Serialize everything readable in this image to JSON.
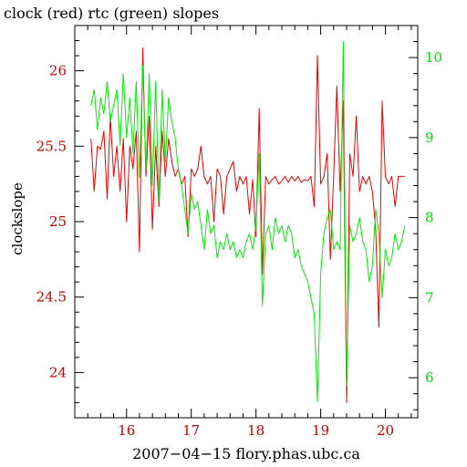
{
  "chart_data": {
    "type": "line",
    "title": "clock (red) rtc (green) slopes",
    "xlabel": "2007−04−15 flory.phas.ubc.ca",
    "ylabel": "clockslope",
    "xlim": [
      15.2,
      20.5
    ],
    "ylim_left": [
      23.7,
      26.3
    ],
    "ylim_right": [
      5.5,
      10.4
    ],
    "x_ticks": [
      16,
      17,
      18,
      19,
      20
    ],
    "y_left_ticks": [
      24,
      24.5,
      25,
      25.5,
      26
    ],
    "y_right_ticks": [
      6,
      7,
      8,
      9,
      10
    ],
    "grid": false,
    "colors": {
      "clock": "#ee0000",
      "rtc": "#00ee00",
      "axis": "#000000",
      "left_ticks": "#cc0000",
      "right_ticks": "#00dd00"
    },
    "series": [
      {
        "axis": "left",
        "color": "#ee0000",
        "x": [
          15.45,
          15.5,
          15.55,
          15.6,
          15.65,
          15.7,
          15.75,
          15.8,
          15.85,
          15.9,
          15.95,
          16.0,
          16.05,
          16.1,
          16.15,
          16.2,
          16.25,
          16.3,
          16.35,
          16.4,
          16.45,
          16.5,
          16.55,
          16.6,
          16.65,
          16.7,
          16.75,
          16.8,
          16.85,
          16.9,
          16.95,
          17.0,
          17.05,
          17.1,
          17.15,
          17.2,
          17.25,
          17.3,
          17.35,
          17.4,
          17.45,
          17.5,
          17.55,
          17.6,
          17.65,
          17.7,
          17.75,
          17.8,
          17.85,
          17.9,
          17.95,
          18.0,
          18.05,
          18.1,
          18.15,
          18.2,
          18.25,
          18.3,
          18.35,
          18.4,
          18.45,
          18.5,
          18.55,
          18.6,
          18.65,
          18.7,
          18.75,
          18.8,
          18.85,
          18.9,
          18.95,
          19.0,
          19.05,
          19.1,
          19.15,
          19.2,
          19.25,
          19.3,
          19.35,
          19.4,
          19.45,
          19.5,
          19.55,
          19.6,
          19.65,
          19.7,
          19.75,
          19.8,
          19.85,
          19.9,
          19.95,
          20.0,
          20.05,
          20.1,
          20.15,
          20.2,
          20.25,
          20.3
        ],
        "y": [
          25.55,
          25.2,
          25.5,
          25.48,
          25.6,
          25.15,
          25.7,
          25.3,
          25.5,
          25.2,
          25.55,
          25.0,
          25.5,
          25.35,
          25.6,
          24.8,
          26.15,
          25.3,
          25.7,
          24.95,
          25.5,
          25.1,
          25.6,
          25.3,
          25.55,
          25.4,
          25.3,
          25.35,
          25.25,
          25.3,
          24.9,
          25.35,
          25.3,
          25.35,
          25.5,
          25.3,
          25.25,
          25.3,
          25.0,
          25.35,
          25.3,
          25.05,
          25.3,
          25.35,
          25.4,
          25.2,
          25.3,
          25.25,
          25.3,
          25.05,
          25.28,
          24.9,
          25.75,
          24.65,
          25.3,
          25.25,
          25.28,
          25.3,
          25.25,
          25.27,
          25.3,
          25.26,
          25.3,
          25.27,
          25.3,
          25.26,
          25.28,
          25.27,
          25.3,
          25.1,
          26.1,
          25.25,
          25.3,
          25.45,
          24.75,
          25.3,
          25.9,
          25.2,
          25.8,
          23.8,
          25.45,
          25.3,
          25.7,
          25.2,
          25.3,
          25.25,
          25.3,
          25.2,
          24.95,
          24.3,
          25.8,
          25.3,
          25.25,
          25.3,
          25.1,
          25.3,
          25.3,
          25.3
        ]
      },
      {
        "axis": "right",
        "color": "#00ee00",
        "x": [
          15.45,
          15.5,
          15.55,
          15.6,
          15.65,
          15.7,
          15.75,
          15.8,
          15.85,
          15.9,
          15.95,
          16.0,
          16.05,
          16.1,
          16.15,
          16.2,
          16.25,
          16.3,
          16.35,
          16.4,
          16.45,
          16.5,
          16.55,
          16.6,
          16.65,
          16.7,
          16.75,
          16.8,
          16.85,
          16.9,
          16.95,
          17.0,
          17.05,
          17.1,
          17.15,
          17.2,
          17.25,
          17.3,
          17.35,
          17.4,
          17.45,
          17.5,
          17.55,
          17.6,
          17.65,
          17.7,
          17.75,
          17.8,
          17.85,
          17.9,
          17.95,
          18.0,
          18.05,
          18.1,
          18.15,
          18.2,
          18.25,
          18.3,
          18.35,
          18.4,
          18.45,
          18.5,
          18.55,
          18.6,
          18.65,
          18.7,
          18.75,
          18.8,
          18.85,
          18.9,
          18.95,
          19.0,
          19.05,
          19.1,
          19.15,
          19.2,
          19.25,
          19.3,
          19.35,
          19.4,
          19.45,
          19.5,
          19.55,
          19.6,
          19.65,
          19.7,
          19.75,
          19.8,
          19.85,
          19.9,
          19.95,
          20.0,
          20.05,
          20.1,
          20.15,
          20.2,
          20.25,
          20.3
        ],
        "y": [
          9.4,
          9.6,
          9.1,
          9.5,
          9.3,
          9.7,
          9.2,
          9.4,
          9.6,
          8.9,
          9.8,
          9.0,
          9.5,
          8.8,
          9.7,
          8.5,
          9.9,
          8.6,
          9.8,
          8.4,
          9.7,
          8.2,
          9.6,
          8.7,
          9.5,
          9.2,
          9.0,
          8.6,
          8.4,
          8.1,
          7.8,
          8.3,
          8.1,
          8.2,
          7.9,
          7.6,
          8.1,
          7.8,
          7.9,
          7.5,
          7.7,
          7.6,
          7.8,
          7.6,
          7.7,
          7.5,
          7.6,
          7.5,
          7.7,
          7.8,
          7.6,
          7.9,
          8.8,
          6.9,
          7.8,
          7.9,
          7.6,
          8.0,
          7.8,
          7.9,
          7.7,
          7.9,
          7.8,
          7.5,
          7.6,
          7.4,
          7.3,
          7.2,
          7.0,
          6.8,
          5.7,
          7.3,
          7.8,
          8.0,
          8.1,
          7.6,
          7.7,
          7.6,
          10.2,
          5.9,
          7.9,
          7.7,
          7.8,
          8.0,
          7.7,
          7.6,
          7.2,
          7.4,
          8.1,
          7.8,
          7.0,
          7.6,
          7.4,
          7.5,
          7.8,
          7.6,
          7.7,
          7.9
        ]
      }
    ]
  }
}
